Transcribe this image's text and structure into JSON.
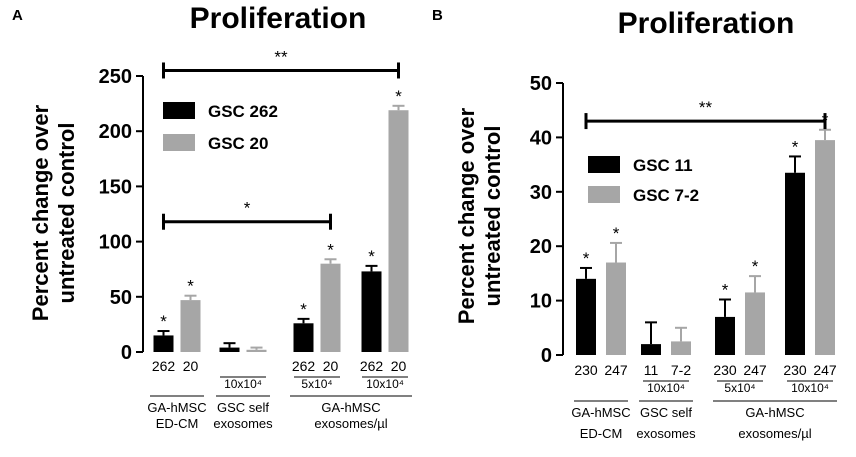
{
  "chart_data": [
    {
      "panel": "A",
      "type": "bar",
      "title": "Proliferation",
      "ylabel": [
        "Percent change over",
        "untreated control"
      ],
      "ylim": [
        0,
        250
      ],
      "yticks": [
        "0",
        "50",
        "100",
        "150",
        "200",
        "250"
      ],
      "legend": {
        "placement": "top-left"
      },
      "series": [
        {
          "name": "GSC 262",
          "color": "#000000"
        },
        {
          "name": "GSC 20",
          "color": "#a6a6a6"
        }
      ],
      "groups": [
        {
          "bars": [
            {
              "label": "262",
              "series": 0,
              "value": 15,
              "error": 4,
              "star": "*"
            },
            {
              "label": "20",
              "series": 1,
              "value": 47,
              "error": 4,
              "star": "*"
            }
          ],
          "sub": ""
        },
        {
          "bars": [
            {
              "label": "",
              "series": 0,
              "value": 4,
              "error": 4,
              "star": ""
            },
            {
              "label": "",
              "series": 1,
              "value": 2,
              "error": 2,
              "star": ""
            }
          ],
          "sub": "10x10⁴"
        },
        {
          "bars": [
            {
              "label": "262",
              "series": 0,
              "value": 26,
              "error": 4,
              "star": "*"
            },
            {
              "label": "20",
              "series": 1,
              "value": 80,
              "error": 4,
              "star": "*"
            }
          ],
          "sub": "5x10⁴"
        },
        {
          "bars": [
            {
              "label": "262",
              "series": 0,
              "value": 73,
              "error": 5,
              "star": "*"
            },
            {
              "label": "20",
              "series": 1,
              "value": 219,
              "error": 4,
              "star": "*"
            }
          ],
          "sub": "10x10⁴"
        }
      ],
      "conditions": [
        {
          "lines": [
            "GA-hMSC",
            "ED-CM"
          ],
          "groups": [
            0
          ]
        },
        {
          "lines": [
            "GSC self",
            "exosomes"
          ],
          "groups": [
            1
          ]
        },
        {
          "lines": [
            "GA-hMSC",
            "exosomes/µl"
          ],
          "groups": [
            2,
            3
          ]
        }
      ],
      "comparisons": [
        {
          "from": 0,
          "to": 3,
          "y": 255,
          "label": "**"
        },
        {
          "from": 0,
          "to": 2,
          "y": 118,
          "label": "*"
        }
      ]
    },
    {
      "panel": "B",
      "type": "bar",
      "title": "Proliferation",
      "ylabel": [
        "Percent change over",
        "untreated control"
      ],
      "ylim": [
        0,
        50
      ],
      "yticks": [
        "0",
        "10",
        "20",
        "30",
        "40",
        "50"
      ],
      "legend": {
        "placement": "left"
      },
      "series": [
        {
          "name": "GSC 11",
          "color": "#000000"
        },
        {
          "name": "GSC 7-2",
          "color": "#a6a6a6"
        }
      ],
      "groups": [
        {
          "bars": [
            {
              "label": "230",
              "series": 0,
              "value": 14,
              "error": 2,
              "star": "*"
            },
            {
              "label": "247",
              "series": 1,
              "value": 17,
              "error": 3.6,
              "star": "*"
            }
          ],
          "sub": ""
        },
        {
          "bars": [
            {
              "label": "11",
              "series": 0,
              "value": 2,
              "error": 4,
              "star": ""
            },
            {
              "label": "7-2",
              "series": 1,
              "value": 2.5,
              "error": 2.5,
              "star": ""
            }
          ],
          "sub": "10x10⁴"
        },
        {
          "bars": [
            {
              "label": "230",
              "series": 0,
              "value": 7,
              "error": 3.2,
              "star": "*"
            },
            {
              "label": "247",
              "series": 1,
              "value": 11.5,
              "error": 3,
              "star": "*"
            }
          ],
          "sub": "5x10⁴"
        },
        {
          "bars": [
            {
              "label": "230",
              "series": 0,
              "value": 33.5,
              "error": 3,
              "star": "*"
            },
            {
              "label": "247",
              "series": 1,
              "value": 39.5,
              "error": 1.9,
              "star": "*"
            }
          ],
          "sub": "10x10⁴"
        }
      ],
      "conditions": [
        {
          "lines": [
            "GA-hMSC",
            "ED-CM"
          ],
          "groups": [
            0
          ]
        },
        {
          "lines": [
            "GSC self",
            "exosomes"
          ],
          "groups": [
            1
          ]
        },
        {
          "lines": [
            "GA-hMSC",
            "exosomes/µl"
          ],
          "groups": [
            2,
            3
          ]
        }
      ],
      "comparisons": [
        {
          "from": 0,
          "to": 3,
          "y": 43,
          "label": "**"
        }
      ]
    }
  ]
}
